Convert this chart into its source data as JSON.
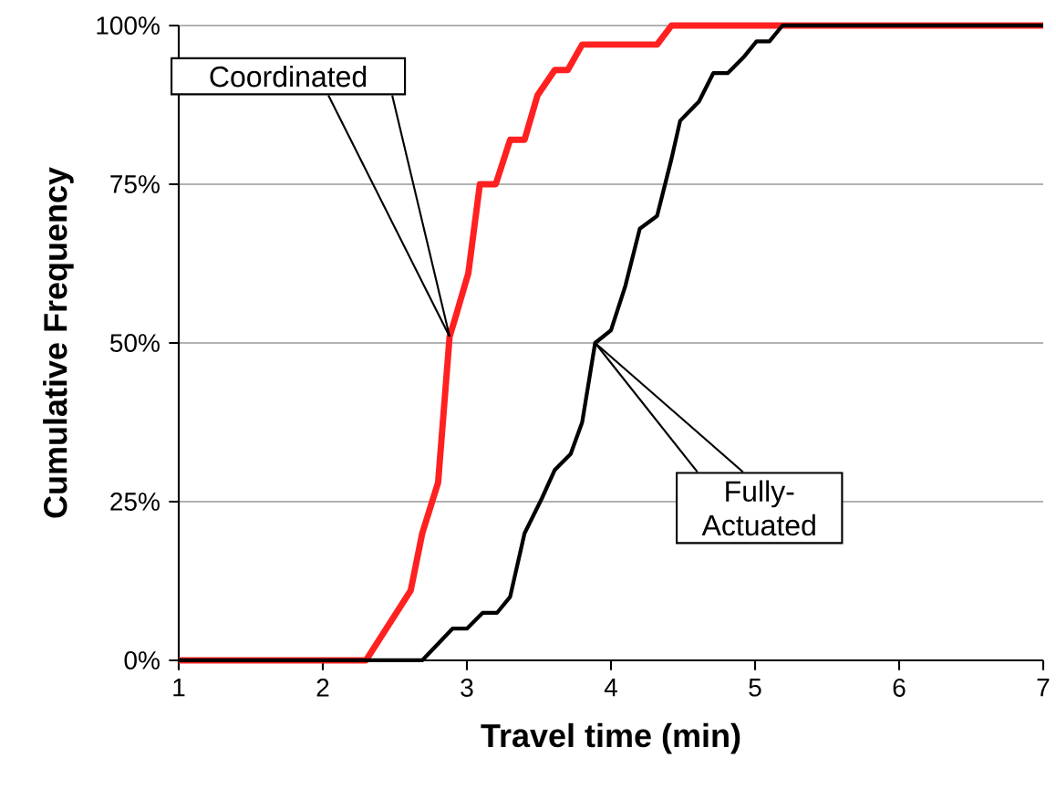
{
  "chart_data": {
    "type": "line",
    "xlabel": "Travel time (min)",
    "ylabel": "Cumulative Frequency",
    "xlim": [
      1,
      7
    ],
    "xticks": [
      1,
      2,
      3,
      4,
      5,
      6,
      7
    ],
    "ylim": [
      0,
      100
    ],
    "yticks": [
      {
        "value": 0,
        "label": "0%"
      },
      {
        "value": 25,
        "label": "25%"
      },
      {
        "value": 50,
        "label": "50%"
      },
      {
        "value": 75,
        "label": "75%"
      },
      {
        "value": 100,
        "label": "100%"
      }
    ],
    "grid": "y",
    "marker": "none",
    "line_style": "solid",
    "series": [
      {
        "color": "#ff2020",
        "x": [
          1,
          2.3,
          2.61,
          2.69,
          2.8,
          2.88,
          2.92,
          3.01,
          3.09,
          3.2,
          3.3,
          3.4,
          3.49,
          3.61,
          3.7,
          3.8,
          4.32,
          4.42,
          7
        ],
        "values": [
          0,
          0,
          11,
          20,
          28,
          51,
          54,
          61,
          75,
          75,
          82,
          82,
          89,
          93,
          93,
          97,
          97,
          100,
          100
        ]
      },
      {
        "color": "#000000",
        "x": [
          1,
          2.69,
          2.9,
          3.0,
          3.11,
          3.21,
          3.3,
          3.4,
          3.52,
          3.61,
          3.72,
          3.8,
          3.89,
          4.0,
          4.1,
          4.2,
          4.32,
          4.42,
          4.48,
          4.61,
          4.71,
          4.81,
          4.92,
          5.01,
          5.1,
          5.19,
          7
        ],
        "values": [
          0,
          0,
          5,
          5,
          7.5,
          7.5,
          10,
          20,
          25.5,
          30,
          32.5,
          37.5,
          50,
          52,
          59,
          68,
          70,
          79,
          85,
          88,
          92.5,
          92.5,
          95,
          97.5,
          97.5,
          100,
          100
        ]
      }
    ],
    "annotations": [
      {
        "text": "Coordinated",
        "x": 2.88,
        "y": 51
      },
      {
        "text": "Fully-Actuated",
        "x": 3.89,
        "y": 50
      }
    ]
  }
}
